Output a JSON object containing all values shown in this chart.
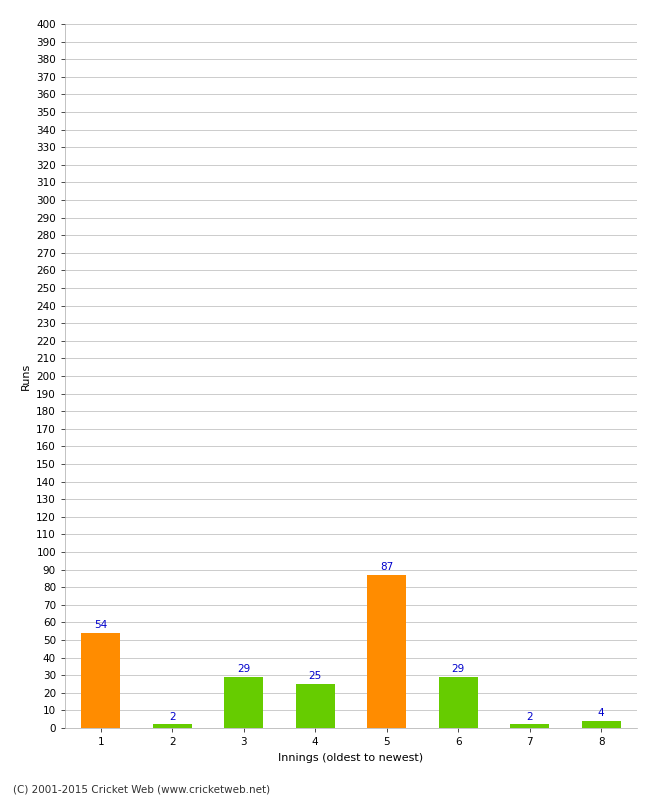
{
  "xlabel": "Innings (oldest to newest)",
  "ylabel": "Runs",
  "categories": [
    1,
    2,
    3,
    4,
    5,
    6,
    7,
    8
  ],
  "values": [
    54,
    2,
    29,
    25,
    87,
    29,
    2,
    4
  ],
  "colors": [
    "#ff8c00",
    "#66cc00",
    "#66cc00",
    "#66cc00",
    "#ff8c00",
    "#66cc00",
    "#66cc00",
    "#66cc00"
  ],
  "ylim": [
    0,
    400
  ],
  "ytick_step": 10,
  "label_color": "#0000cc",
  "label_fontsize": 7.5,
  "tick_fontsize": 7.5,
  "xlabel_fontsize": 8,
  "ylabel_fontsize": 8,
  "footer": "(C) 2001-2015 Cricket Web (www.cricketweb.net)",
  "footer_fontsize": 7.5,
  "background_color": "#ffffff",
  "grid_color": "#cccccc",
  "bar_width": 0.55
}
